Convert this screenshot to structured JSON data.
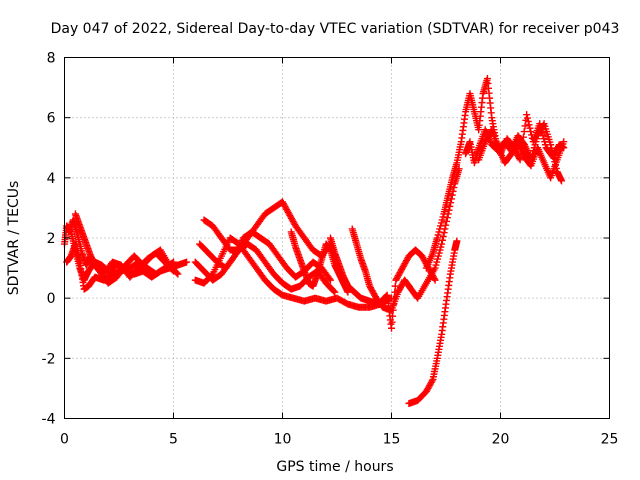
{
  "chart_data": {
    "type": "scatter",
    "title": "Day 047 of 2022, Sidereal Day-to-day VTEC variation (SDTVAR) for receiver p043",
    "xlabel": "GPS time / hours",
    "ylabel": "SDTVAR / TECUs",
    "xlim": [
      0,
      25
    ],
    "ylim": [
      -4,
      8
    ],
    "xticks": [
      0,
      5,
      10,
      15,
      20,
      25
    ],
    "yticks": [
      -4,
      -2,
      0,
      2,
      4,
      6,
      8
    ],
    "grid": true,
    "marker": "plus",
    "color": "#ff0000",
    "tracks": [
      [
        [
          0.0,
          1.8
        ],
        [
          0.1,
          2.4
        ],
        [
          0.3,
          2.2
        ],
        [
          0.5,
          1.6
        ],
        [
          0.7,
          1.0
        ],
        [
          0.9,
          0.6
        ],
        [
          1.1,
          0.9
        ],
        [
          1.4,
          1.2
        ],
        [
          1.7,
          1.1
        ],
        [
          2.0,
          0.9
        ],
        [
          2.4,
          1.1
        ],
        [
          2.8,
          1.0
        ],
        [
          3.2,
          0.8
        ],
        [
          3.6,
          0.9
        ],
        [
          4.0,
          0.7
        ],
        [
          4.4,
          0.9
        ],
        [
          4.8,
          1.0
        ],
        [
          5.2,
          1.1
        ],
        [
          5.6,
          1.2
        ]
      ],
      [
        [
          0.1,
          1.2
        ],
        [
          0.3,
          1.4
        ],
        [
          0.5,
          1.8
        ],
        [
          0.7,
          1.2
        ],
        [
          0.9,
          0.3
        ],
        [
          1.1,
          0.4
        ],
        [
          1.4,
          0.7
        ],
        [
          1.8,
          0.6
        ],
        [
          2.2,
          0.8
        ],
        [
          2.6,
          0.9
        ],
        [
          3.0,
          1.0
        ],
        [
          3.4,
          1.2
        ],
        [
          3.8,
          1.0
        ],
        [
          4.2,
          0.8
        ],
        [
          4.6,
          1.0
        ],
        [
          5.0,
          1.2
        ]
      ],
      [
        [
          0.2,
          2.2
        ],
        [
          0.4,
          2.6
        ],
        [
          0.6,
          2.1
        ],
        [
          0.8,
          1.5
        ],
        [
          1.0,
          1.1
        ],
        [
          1.2,
          1.4
        ],
        [
          1.5,
          1.0
        ],
        [
          1.8,
          0.8
        ],
        [
          2.2,
          1.2
        ],
        [
          2.6,
          1.1
        ],
        [
          3.0,
          0.7
        ],
        [
          3.4,
          1.0
        ],
        [
          3.8,
          1.3
        ],
        [
          4.2,
          1.5
        ],
        [
          4.6,
          1.2
        ],
        [
          5.0,
          0.9
        ]
      ],
      [
        [
          0.5,
          2.8
        ],
        [
          0.7,
          2.4
        ],
        [
          0.9,
          2.0
        ],
        [
          1.1,
          1.6
        ],
        [
          1.3,
          1.2
        ],
        [
          1.6,
          0.9
        ],
        [
          2.0,
          0.5
        ],
        [
          2.4,
          0.7
        ],
        [
          2.8,
          1.1
        ],
        [
          3.2,
          1.4
        ],
        [
          3.6,
          1.1
        ],
        [
          4.0,
          1.4
        ],
        [
          4.4,
          1.6
        ],
        [
          4.8,
          1.1
        ],
        [
          5.2,
          0.8
        ]
      ],
      [
        [
          6.4,
          2.6
        ],
        [
          6.8,
          2.4
        ],
        [
          7.2,
          2.0
        ],
        [
          7.6,
          1.6
        ],
        [
          8.0,
          1.6
        ],
        [
          8.4,
          2.0
        ],
        [
          8.8,
          2.4
        ],
        [
          9.2,
          2.8
        ],
        [
          9.6,
          3.0
        ],
        [
          10.0,
          3.2
        ],
        [
          10.3,
          2.8
        ],
        [
          10.6,
          2.4
        ],
        [
          11.0,
          2.0
        ],
        [
          11.4,
          1.6
        ],
        [
          11.8,
          1.4
        ],
        [
          12.2,
          1.8
        ],
        [
          12.5,
          1.2
        ]
      ],
      [
        [
          6.2,
          1.8
        ],
        [
          6.6,
          1.5
        ],
        [
          7.0,
          1.2
        ],
        [
          7.4,
          1.0
        ],
        [
          7.8,
          1.4
        ],
        [
          8.2,
          2.0
        ],
        [
          8.6,
          2.2
        ],
        [
          9.0,
          2.0
        ],
        [
          9.4,
          1.8
        ],
        [
          9.8,
          1.4
        ],
        [
          10.2,
          1.0
        ],
        [
          10.6,
          0.7
        ],
        [
          11.0,
          0.9
        ],
        [
          11.4,
          1.2
        ],
        [
          11.8,
          1.0
        ],
        [
          12.2,
          0.6
        ]
      ],
      [
        [
          6.0,
          1.2
        ],
        [
          6.4,
          0.9
        ],
        [
          6.8,
          0.6
        ],
        [
          7.2,
          0.8
        ],
        [
          7.6,
          1.2
        ],
        [
          8.0,
          1.6
        ],
        [
          8.4,
          1.8
        ],
        [
          8.8,
          1.6
        ],
        [
          9.2,
          1.2
        ],
        [
          9.6,
          0.8
        ],
        [
          10.0,
          0.5
        ],
        [
          10.4,
          0.3
        ],
        [
          10.8,
          0.4
        ],
        [
          11.2,
          0.7
        ],
        [
          11.6,
          0.9
        ],
        [
          12.0,
          0.5
        ],
        [
          12.4,
          0.2
        ]
      ],
      [
        [
          6.0,
          0.6
        ],
        [
          6.4,
          0.5
        ],
        [
          6.8,
          0.8
        ],
        [
          7.2,
          1.4
        ],
        [
          7.6,
          2.0
        ],
        [
          8.0,
          1.8
        ],
        [
          8.4,
          1.4
        ],
        [
          8.8,
          1.0
        ],
        [
          9.2,
          0.6
        ],
        [
          9.6,
          0.3
        ],
        [
          10.0,
          0.1
        ],
        [
          10.5,
          0.0
        ],
        [
          11.0,
          -0.1
        ],
        [
          11.5,
          0.0
        ],
        [
          12.0,
          -0.1
        ],
        [
          12.5,
          0.0
        ],
        [
          13.0,
          -0.2
        ],
        [
          13.5,
          -0.3
        ],
        [
          14.0,
          -0.3
        ],
        [
          14.5,
          -0.2
        ],
        [
          15.0,
          0.0
        ]
      ],
      [
        [
          10.4,
          2.2
        ],
        [
          10.6,
          1.7
        ],
        [
          10.8,
          1.3
        ],
        [
          11.0,
          0.9
        ],
        [
          11.2,
          0.5
        ],
        [
          11.4,
          0.4
        ],
        [
          11.6,
          0.8
        ],
        [
          11.8,
          1.3
        ],
        [
          12.0,
          1.8
        ],
        [
          12.2,
          1.6
        ],
        [
          12.4,
          1.1
        ],
        [
          12.6,
          0.8
        ],
        [
          12.8,
          0.5
        ],
        [
          13.0,
          0.2
        ]
      ],
      [
        [
          12.2,
          2.0
        ],
        [
          12.4,
          1.5
        ],
        [
          12.6,
          1.1
        ],
        [
          12.8,
          0.7
        ],
        [
          13.0,
          0.4
        ],
        [
          13.3,
          0.2
        ],
        [
          13.6,
          0.0
        ],
        [
          14.0,
          -0.1
        ],
        [
          14.4,
          -0.2
        ],
        [
          14.8,
          0.1
        ],
        [
          15.0,
          -1.0
        ],
        [
          15.2,
          0.6
        ],
        [
          15.5,
          1.0
        ],
        [
          15.8,
          1.4
        ],
        [
          16.1,
          1.6
        ],
        [
          16.4,
          1.4
        ],
        [
          16.7,
          1.0
        ],
        [
          17.0,
          0.6
        ]
      ],
      [
        [
          13.2,
          2.3
        ],
        [
          13.4,
          1.8
        ],
        [
          13.6,
          1.3
        ],
        [
          13.8,
          0.9
        ],
        [
          14.0,
          0.4
        ],
        [
          14.3,
          0.0
        ],
        [
          14.6,
          -0.3
        ],
        [
          15.0,
          -0.4
        ],
        [
          15.3,
          0.2
        ],
        [
          15.6,
          0.6
        ],
        [
          15.9,
          0.3
        ],
        [
          16.2,
          0.0
        ],
        [
          16.6,
          0.5
        ],
        [
          17.0,
          1.0
        ],
        [
          17.3,
          1.8
        ],
        [
          17.6,
          2.8
        ],
        [
          17.9,
          3.8
        ],
        [
          18.1,
          4.3
        ]
      ],
      [
        [
          15.8,
          -3.5
        ],
        [
          16.2,
          -3.4
        ],
        [
          16.6,
          -3.1
        ],
        [
          16.9,
          -2.7
        ],
        [
          17.1,
          -2.0
        ],
        [
          17.3,
          -1.2
        ],
        [
          17.5,
          -0.2
        ],
        [
          17.7,
          0.8
        ],
        [
          17.9,
          1.6
        ],
        [
          18.0,
          1.9
        ]
      ],
      [
        [
          16.6,
          1.0
        ],
        [
          16.9,
          1.5
        ],
        [
          17.1,
          2.0
        ],
        [
          17.4,
          2.8
        ],
        [
          17.6,
          3.4
        ],
        [
          17.8,
          4.0
        ],
        [
          18.0,
          4.5
        ],
        [
          18.2,
          5.2
        ],
        [
          18.4,
          6.2
        ],
        [
          18.6,
          6.8
        ],
        [
          18.8,
          6.2
        ],
        [
          19.0,
          5.6
        ],
        [
          19.2,
          6.8
        ],
        [
          19.4,
          7.3
        ],
        [
          19.6,
          6.0
        ],
        [
          19.8,
          5.2
        ],
        [
          20.0,
          4.8
        ],
        [
          20.3,
          5.3
        ],
        [
          20.6,
          5.0
        ],
        [
          20.9,
          4.6
        ],
        [
          21.2,
          6.1
        ],
        [
          21.5,
          5.2
        ],
        [
          21.8,
          5.8
        ],
        [
          22.1,
          5.0
        ],
        [
          22.4,
          4.7
        ],
        [
          22.7,
          5.1
        ],
        [
          22.9,
          5.0
        ]
      ],
      [
        [
          18.4,
          4.8
        ],
        [
          18.6,
          5.2
        ],
        [
          18.8,
          4.5
        ],
        [
          19.0,
          5.0
        ],
        [
          19.3,
          5.6
        ],
        [
          19.6,
          5.1
        ],
        [
          19.9,
          4.9
        ],
        [
          20.2,
          5.2
        ],
        [
          20.5,
          4.9
        ],
        [
          20.8,
          5.4
        ],
        [
          21.1,
          5.1
        ],
        [
          21.4,
          4.6
        ],
        [
          21.7,
          5.4
        ],
        [
          22.0,
          5.8
        ],
        [
          22.3,
          5.1
        ],
        [
          22.6,
          4.2
        ],
        [
          22.8,
          3.9
        ]
      ],
      [
        [
          19.0,
          4.6
        ],
        [
          19.3,
          5.2
        ],
        [
          19.6,
          5.6
        ],
        [
          19.9,
          5.0
        ],
        [
          20.2,
          4.5
        ],
        [
          20.5,
          4.8
        ],
        [
          20.8,
          5.2
        ],
        [
          21.1,
          4.7
        ],
        [
          21.4,
          4.4
        ],
        [
          21.7,
          5.0
        ],
        [
          22.0,
          4.5
        ],
        [
          22.3,
          4.0
        ],
        [
          22.6,
          4.6
        ],
        [
          22.9,
          5.2
        ]
      ]
    ]
  }
}
